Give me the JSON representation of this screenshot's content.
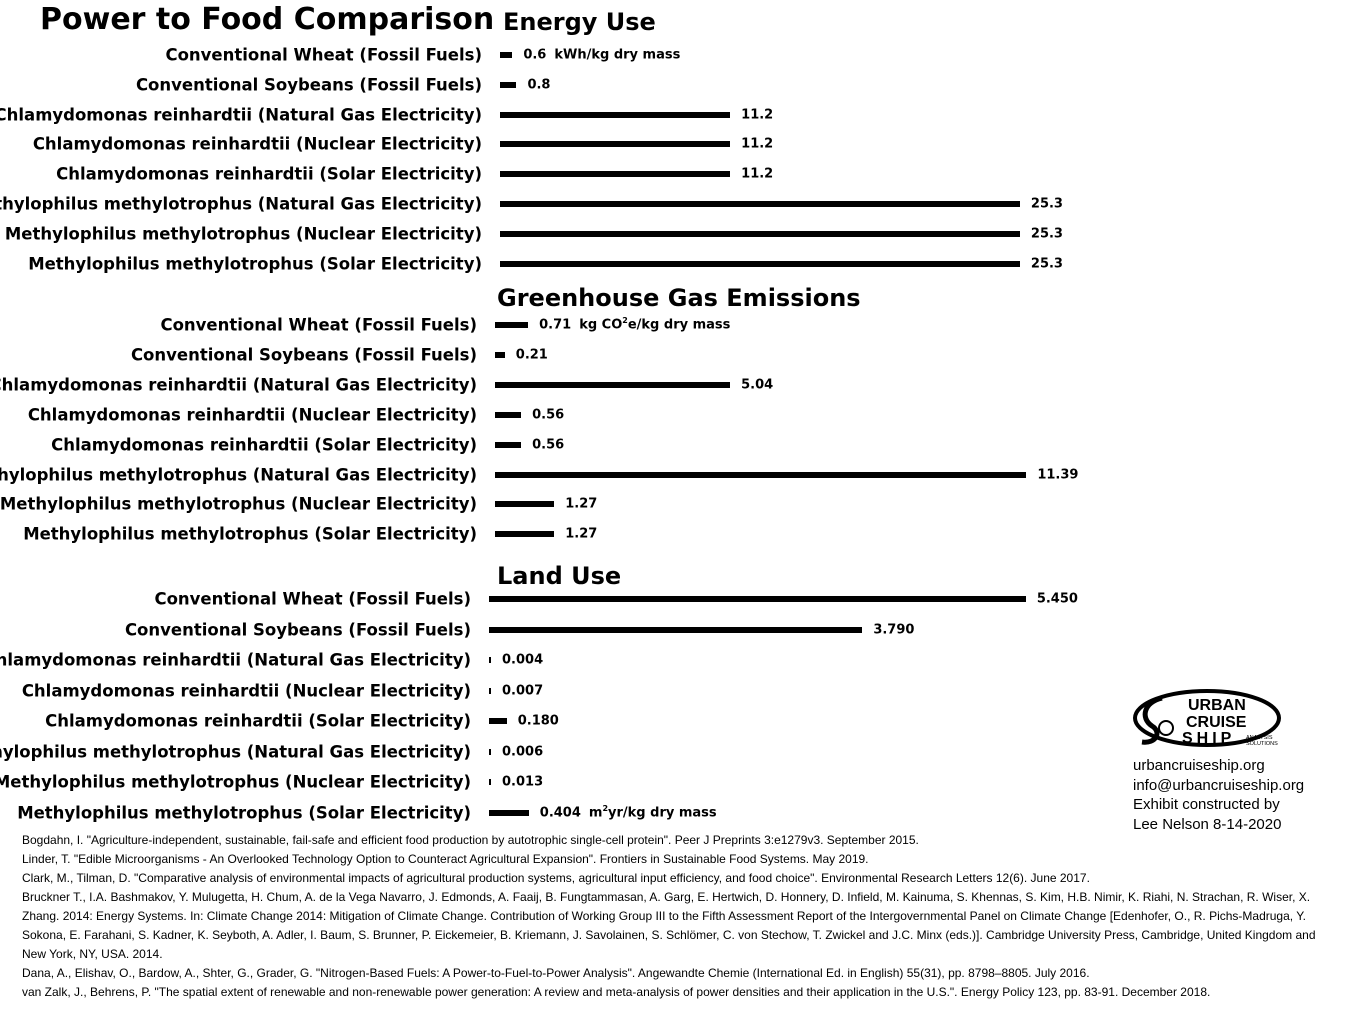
{
  "title": "Power to Food Comparison",
  "chart_data": [
    {
      "type": "bar",
      "orientation": "horizontal",
      "title": "Energy Use",
      "unit": "kWh/kg dry mass",
      "categories": [
        "Conventional Wheat (Fossil Fuels)",
        "Conventional Soybeans (Fossil Fuels)",
        "Chlamydomonas reinhardtii (Natural Gas Electricity)",
        "Chlamydomonas reinhardtii (Nuclear Electricity)",
        "Chlamydomonas reinhardtii (Solar Electricity)",
        "Methylophilus methylotrophus (Natural Gas Electricity)",
        "Methylophilus methylotrophus (Nuclear Electricity)",
        "Methylophilus methylotrophus (Solar Electricity)"
      ],
      "values": [
        0.6,
        0.8,
        11.2,
        11.2,
        11.2,
        25.3,
        25.3,
        25.3
      ],
      "value_labels": [
        "0.6",
        "0.8",
        "11.2",
        "11.2",
        "11.2",
        "25.3",
        "25.3",
        "25.3"
      ],
      "unit_after_row": 0
    },
    {
      "type": "bar",
      "orientation": "horizontal",
      "title": "Greenhouse Gas Emissions",
      "unit_prefix": "kg CO",
      "unit_sup": "2",
      "unit_suffix": "e/kg dry mass",
      "categories": [
        "Conventional Wheat (Fossil Fuels)",
        "Conventional Soybeans (Fossil Fuels)",
        "Chlamydomonas reinhardtii (Natural Gas Electricity)",
        "Chlamydomonas reinhardtii (Nuclear Electricity)",
        "Chlamydomonas reinhardtii (Solar Electricity)",
        "Methylophilus methylotrophus (Natural Gas Electricity)",
        "Methylophilus methylotrophus (Nuclear Electricity)",
        "Methylophilus methylotrophus (Solar Electricity)"
      ],
      "values": [
        0.71,
        0.21,
        5.04,
        0.56,
        0.56,
        11.39,
        1.27,
        1.27
      ],
      "value_labels": [
        "0.71",
        "0.21",
        "5.04",
        "0.56",
        "0.56",
        "11.39",
        "1.27",
        "1.27"
      ],
      "unit_after_row": 0
    },
    {
      "type": "bar",
      "orientation": "horizontal",
      "title": "Land Use",
      "unit_prefix": "m",
      "unit_sup": "2",
      "unit_suffix": "yr/kg dry mass",
      "categories": [
        "Conventional Wheat (Fossil Fuels)",
        "Conventional Soybeans (Fossil Fuels)",
        "Chlamydomonas reinhardtii (Natural Gas Electricity)",
        "Chlamydomonas reinhardtii (Nuclear Electricity)",
        "Chlamydomonas reinhardtii (Solar Electricity)",
        "Methylophilus methylotrophus (Natural Gas Electricity)",
        "Methylophilus methylotrophus (Nuclear Electricity)",
        "Methylophilus methylotrophus (Solar Electricity)"
      ],
      "values": [
        5.45,
        3.79,
        0.004,
        0.007,
        0.18,
        0.006,
        0.013,
        0.404
      ],
      "value_labels": [
        "5.450",
        "3.790",
        "0.004",
        "0.007",
        "0.180",
        "0.006",
        "0.013",
        "0.404"
      ],
      "unit_after_row": 7
    }
  ],
  "logo": {
    "line1": "URBAN",
    "line2": "CRUISE",
    "line3": "SHIP",
    "tag1": "ANALYSIS",
    "tag2": "SOLUTIONS"
  },
  "contact": {
    "website": "urbancruiseship.org",
    "email": "info@urbancruiseship.org",
    "credit_line1": "Exhibit constructed by",
    "credit_line2": "Lee Nelson 8-14-2020"
  },
  "references": [
    "Bogdahn, I. \"Agriculture-independent, sustainable, fail-safe and efficient food production by autotrophic single-cell protein\". Peer J Preprints 3:e1279v3. September 2015.",
    "Linder, T. \"Edible Microorganisms - An Overlooked Technology Option to Counteract Agricultural Expansion\". Frontiers in Sustainable Food Systems. May 2019.",
    "Clark, M., Tilman, D. \"Comparative analysis of environmental impacts of agricultural production systems, agricultural input efficiency, and food choice\". Environmental Research Letters 12(6). June 2017.",
    "Bruckner T., I.A. Bashmakov, Y. Mulugetta, H. Chum, A. de la Vega Navarro, J. Edmonds, A. Faaij, B. Fungtammasan, A. Garg, E. Hertwich, D. Honnery, D. Infield, M. Kainuma, S. Khennas, S. Kim, H.B. Nimir, K. Riahi, N. Strachan, R. Wiser, X. Zhang. 2014: Energy Systems. In: Climate Change 2014: Mitigation of Climate Change. Contribution of Working Group III to the Fifth Assessment Report of the Intergovernmental Panel on Climate Change [Edenhofer, O., R. Pichs-Madruga, Y. Sokona, E. Farahani, S. Kadner, K. Seyboth, A. Adler, I. Baum, S. Brunner, P. Eickemeier, B. Kriemann, J. Savolainen, S. Schlömer, C. von Stechow, T. Zwickel and J.C. Minx (eds.)]. Cambridge University Press, Cambridge, United Kingdom and New York, NY, USA. 2014.",
    "Dana, A., Elishav, O., Bardow, A., Shter, G., Grader, G. \"Nitrogen-Based Fuels: A Power-to-Fuel-to-Power Analysis\". Angewandte Chemie (International Ed. in English) 55(31), pp. 8798–8805. July 2016.",
    "van Zalk, J., Behrens, P. \"The spatial extent of renewable and non-renewable power generation: A review and meta-analysis of power densities and their application in the U.S.\". Energy Policy 123, pp. 83-91. December 2018."
  ]
}
